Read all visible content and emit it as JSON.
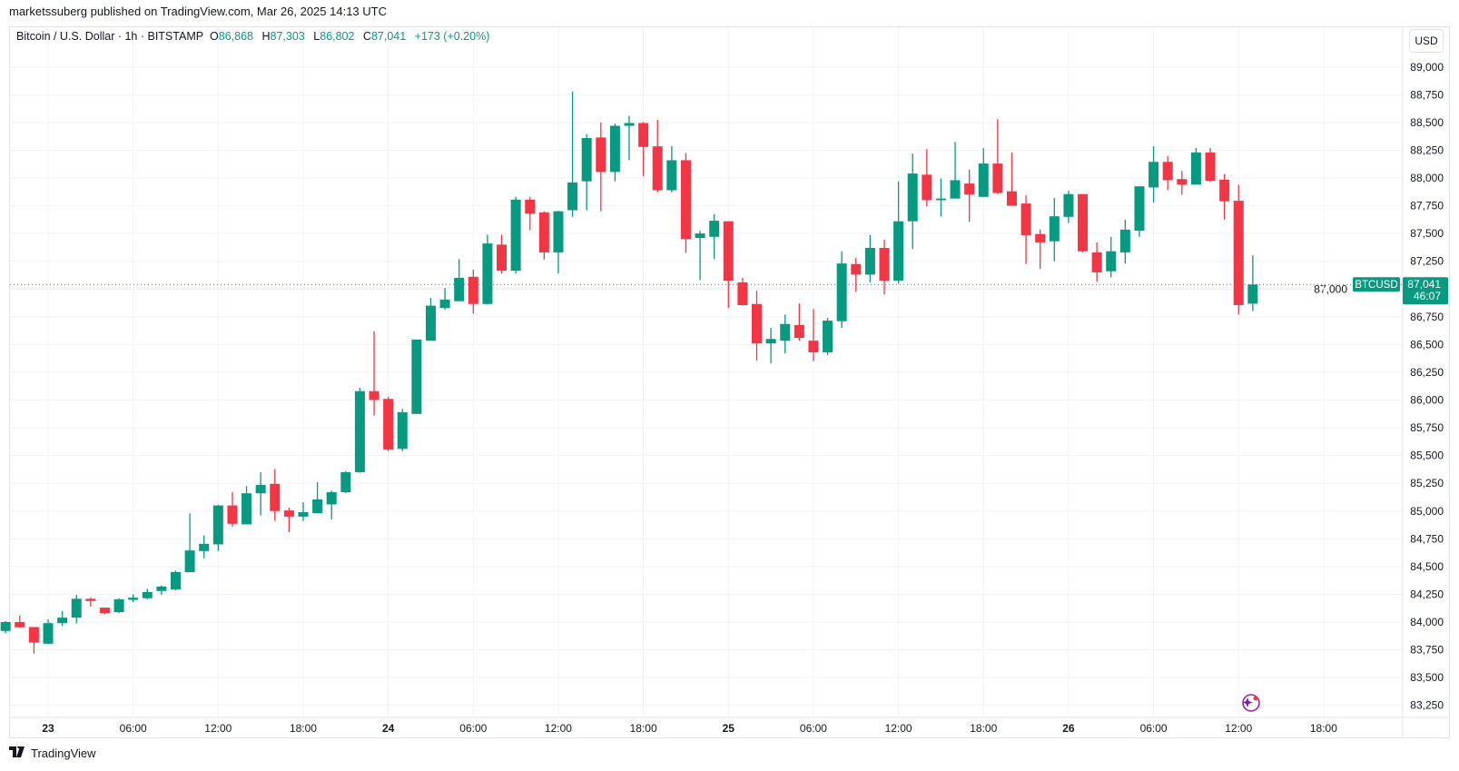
{
  "header": {
    "published": "marketssuberg published on TradingView.com, Mar 26, 2025 14:13 UTC",
    "symbol": "Bitcoin / U.S. Dollar · 1h · BITSTAMP",
    "o_label": "O",
    "o": "86,868",
    "h_label": "H",
    "h": "87,303",
    "l_label": "L",
    "l": "86,802",
    "c_label": "C",
    "c": "87,041",
    "change": "+173 (+0.20%)"
  },
  "currency_button": "USD",
  "footer": {
    "brand": "TradingView"
  },
  "colors": {
    "up": "#089981",
    "down": "#F23645",
    "grid": "#f0f3fa",
    "text": "#131722"
  },
  "chart_data": {
    "type": "candlestick",
    "title": "Bitcoin / U.S. Dollar · 1h · BITSTAMP",
    "interval": "1h",
    "start": "Mar 22 21:00",
    "ylim": [
      83150,
      89500
    ],
    "y_ticks": [
      "89,000",
      "88,750",
      "88,500",
      "88,250",
      "88,000",
      "87,750",
      "87,500",
      "87,250",
      "87,000",
      "86,750",
      "86,500",
      "86,250",
      "86,000",
      "85,750",
      "85,500",
      "85,250",
      "85,000",
      "84,750",
      "84,500",
      "84,250",
      "84,000",
      "83,750",
      "83,500",
      "83,250"
    ],
    "y_tick_values": [
      89000,
      88750,
      88500,
      88250,
      88000,
      87750,
      87500,
      87250,
      87000,
      86750,
      86500,
      86250,
      86000,
      85750,
      85500,
      85250,
      85000,
      84750,
      84500,
      84250,
      84000,
      83750,
      83500,
      83250
    ],
    "x_ticks": [
      {
        "label": "23",
        "index": 3,
        "bold": true
      },
      {
        "label": "06:00",
        "index": 9
      },
      {
        "label": "12:00",
        "index": 15
      },
      {
        "label": "18:00",
        "index": 21
      },
      {
        "label": "24",
        "index": 27,
        "bold": true
      },
      {
        "label": "06:00",
        "index": 33
      },
      {
        "label": "12:00",
        "index": 39
      },
      {
        "label": "18:00",
        "index": 45
      },
      {
        "label": "25",
        "index": 51,
        "bold": true
      },
      {
        "label": "06:00",
        "index": 57
      },
      {
        "label": "12:00",
        "index": 63
      },
      {
        "label": "18:00",
        "index": 69
      },
      {
        "label": "26",
        "index": 75,
        "bold": true
      },
      {
        "label": "06:00",
        "index": 81
      },
      {
        "label": "12:00",
        "index": 87
      },
      {
        "label": "18:00",
        "index": 93
      }
    ],
    "last_price": {
      "symbol": "BTCUSD",
      "value": 87041,
      "label": "87,041",
      "countdown": "46:07"
    },
    "ohlc": [
      [
        83920,
        84010,
        83900,
        84000
      ],
      [
        84000,
        84060,
        83950,
        83953
      ],
      [
        83955,
        83955,
        83715,
        83815
      ],
      [
        83805,
        84025,
        83800,
        83990
      ],
      [
        83990,
        84100,
        83965,
        84040
      ],
      [
        84040,
        84245,
        83990,
        84210
      ],
      [
        84210,
        84220,
        84140,
        84190
      ],
      [
        84130,
        84130,
        84070,
        84080
      ],
      [
        84090,
        84215,
        84080,
        84205
      ],
      [
        84200,
        84250,
        84180,
        84220
      ],
      [
        84215,
        84300,
        84205,
        84270
      ],
      [
        84280,
        84330,
        84245,
        84320
      ],
      [
        84295,
        84465,
        84285,
        84450
      ],
      [
        84450,
        84980,
        84450,
        84645
      ],
      [
        84640,
        84780,
        84575,
        84705
      ],
      [
        84700,
        85055,
        84640,
        85050
      ],
      [
        85050,
        85170,
        84860,
        84885
      ],
      [
        84880,
        85225,
        84880,
        85160
      ],
      [
        85160,
        85350,
        84960,
        85235
      ],
      [
        85245,
        85380,
        84910,
        85000
      ],
      [
        85005,
        85030,
        84810,
        84950
      ],
      [
        84950,
        85080,
        84910,
        84990
      ],
      [
        84980,
        85260,
        84980,
        85105
      ],
      [
        85060,
        85185,
        84925,
        85170
      ],
      [
        85170,
        85360,
        85160,
        85350
      ],
      [
        85350,
        86110,
        85345,
        86080
      ],
      [
        86080,
        86620,
        85860,
        86000
      ],
      [
        86010,
        86030,
        85540,
        85555
      ],
      [
        85560,
        85920,
        85540,
        85890
      ],
      [
        85875,
        86545,
        85875,
        86545
      ],
      [
        86535,
        86920,
        86535,
        86850
      ],
      [
        86830,
        87010,
        86815,
        86905
      ],
      [
        86890,
        87270,
        86890,
        87100
      ],
      [
        87110,
        87175,
        86780,
        86865
      ],
      [
        86865,
        87490,
        86860,
        87410
      ],
      [
        87400,
        87490,
        87140,
        87165
      ],
      [
        87165,
        87830,
        87140,
        87805
      ],
      [
        87805,
        87830,
        87530,
        87680
      ],
      [
        87690,
        87700,
        87265,
        87330
      ],
      [
        87330,
        87705,
        87140,
        87700
      ],
      [
        87710,
        88780,
        87650,
        87960
      ],
      [
        87970,
        88395,
        87710,
        88360
      ],
      [
        88365,
        88500,
        87700,
        88055
      ],
      [
        88055,
        88490,
        87970,
        88470
      ],
      [
        88470,
        88560,
        88160,
        88495
      ],
      [
        88495,
        88505,
        88015,
        88280
      ],
      [
        88285,
        88525,
        87870,
        87890
      ],
      [
        87890,
        88285,
        87870,
        88160
      ],
      [
        88160,
        88225,
        87325,
        87450
      ],
      [
        87460,
        87525,
        87080,
        87500
      ],
      [
        87470,
        87675,
        87270,
        87615
      ],
      [
        87610,
        87610,
        86830,
        87075
      ],
      [
        87060,
        87100,
        86850,
        86855
      ],
      [
        86865,
        86985,
        86355,
        86510
      ],
      [
        86510,
        86650,
        86330,
        86550
      ],
      [
        86535,
        86770,
        86420,
        86685
      ],
      [
        86675,
        86870,
        86535,
        86560
      ],
      [
        86535,
        86820,
        86350,
        86430
      ],
      [
        86430,
        86740,
        86405,
        86715
      ],
      [
        86710,
        87340,
        86650,
        87230
      ],
      [
        87225,
        87280,
        86975,
        87130
      ],
      [
        87130,
        87485,
        87060,
        87370
      ],
      [
        87370,
        87445,
        86950,
        87075
      ],
      [
        87075,
        87970,
        87050,
        87610
      ],
      [
        87610,
        88220,
        87360,
        88040
      ],
      [
        88030,
        88260,
        87745,
        87800
      ],
      [
        87800,
        87995,
        87655,
        87815
      ],
      [
        87815,
        88325,
        87815,
        87980
      ],
      [
        87950,
        88075,
        87605,
        87850
      ],
      [
        87830,
        88270,
        87830,
        88130
      ],
      [
        88130,
        88530,
        87855,
        87865
      ],
      [
        87880,
        88230,
        87750,
        87750
      ],
      [
        87770,
        87845,
        87225,
        87485
      ],
      [
        87495,
        87535,
        87180,
        87420
      ],
      [
        87430,
        87820,
        87250,
        87655
      ],
      [
        87650,
        87885,
        87595,
        87855
      ],
      [
        87855,
        87855,
        87330,
        87340
      ],
      [
        87330,
        87420,
        87065,
        87150
      ],
      [
        87160,
        87470,
        87105,
        87340
      ],
      [
        87330,
        87625,
        87230,
        87535
      ],
      [
        87525,
        87925,
        87470,
        87925
      ],
      [
        87915,
        88285,
        87780,
        88145
      ],
      [
        88145,
        88195,
        87890,
        87980
      ],
      [
        87990,
        88065,
        87850,
        87940
      ],
      [
        87940,
        88270,
        87940,
        88230
      ],
      [
        88230,
        88270,
        87965,
        87975
      ],
      [
        87985,
        88035,
        87625,
        87790
      ],
      [
        87795,
        87940,
        86770,
        86855
      ],
      [
        86868,
        87303,
        86802,
        87041
      ]
    ]
  }
}
